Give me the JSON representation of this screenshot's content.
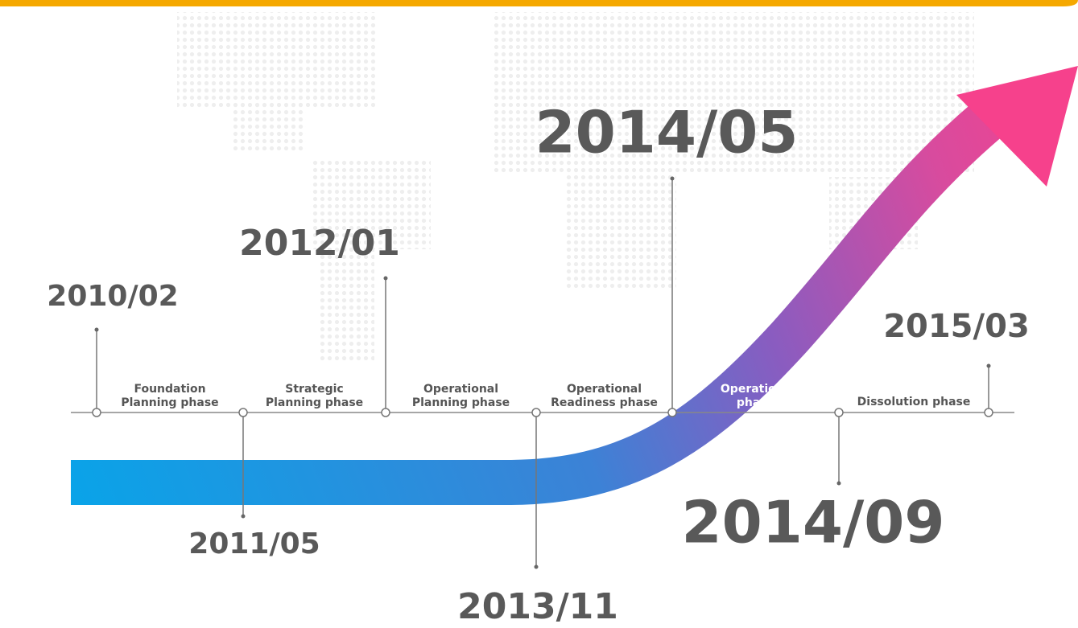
{
  "milestones": [
    {
      "date": "2010/02"
    },
    {
      "date": "2011/05"
    },
    {
      "date": "2012/01"
    },
    {
      "date": "2013/11"
    },
    {
      "date": "2014/05"
    },
    {
      "date": "2014/09"
    },
    {
      "date": "2015/03"
    }
  ],
  "phases": [
    {
      "lines": [
        "Foundation",
        "Planning phase"
      ]
    },
    {
      "lines": [
        "Strategic",
        "Planning phase"
      ]
    },
    {
      "lines": [
        "Operational",
        "Planning phase"
      ]
    },
    {
      "lines": [
        "Operational",
        "Readiness phase"
      ]
    },
    {
      "lines": [
        "Operations",
        "phase"
      ]
    },
    {
      "lines": [
        "Dissolution phase"
      ]
    }
  ]
}
